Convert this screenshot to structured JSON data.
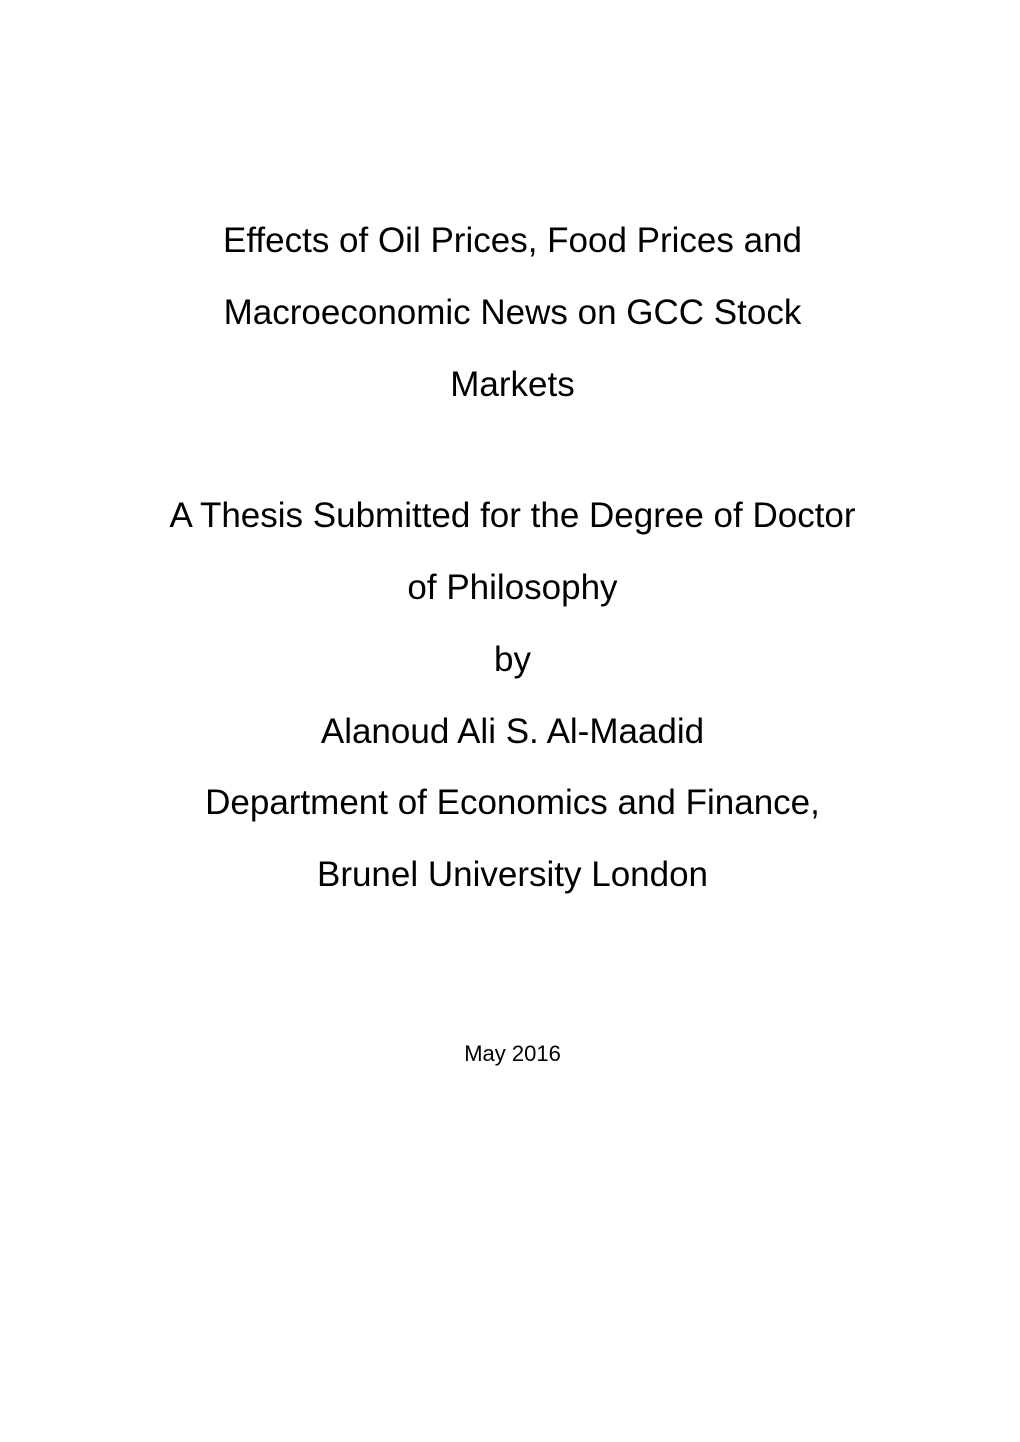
{
  "document": {
    "type": "thesis-title-page",
    "background_color": "#ffffff",
    "text_color": "#000000",
    "title": {
      "lines": [
        "Effects of Oil Prices, Food Prices and",
        "Macroeconomic News on GCC Stock",
        "Markets"
      ],
      "fontsize": 35,
      "fontweight": 400,
      "align": "center",
      "line_height": 2.05
    },
    "subtitle": {
      "lines": [
        "A Thesis Submitted for the Degree of Doctor",
        "of Philosophy",
        "by",
        "Alanoud Ali S. Al-Maadid",
        "Department of Economics and Finance,",
        "Brunel University London"
      ],
      "fontsize": 35,
      "fontweight": 400,
      "align": "center",
      "line_height": 2.05
    },
    "date": {
      "text": "May 2016",
      "fontsize": 22,
      "fontweight": 400,
      "align": "center"
    }
  }
}
